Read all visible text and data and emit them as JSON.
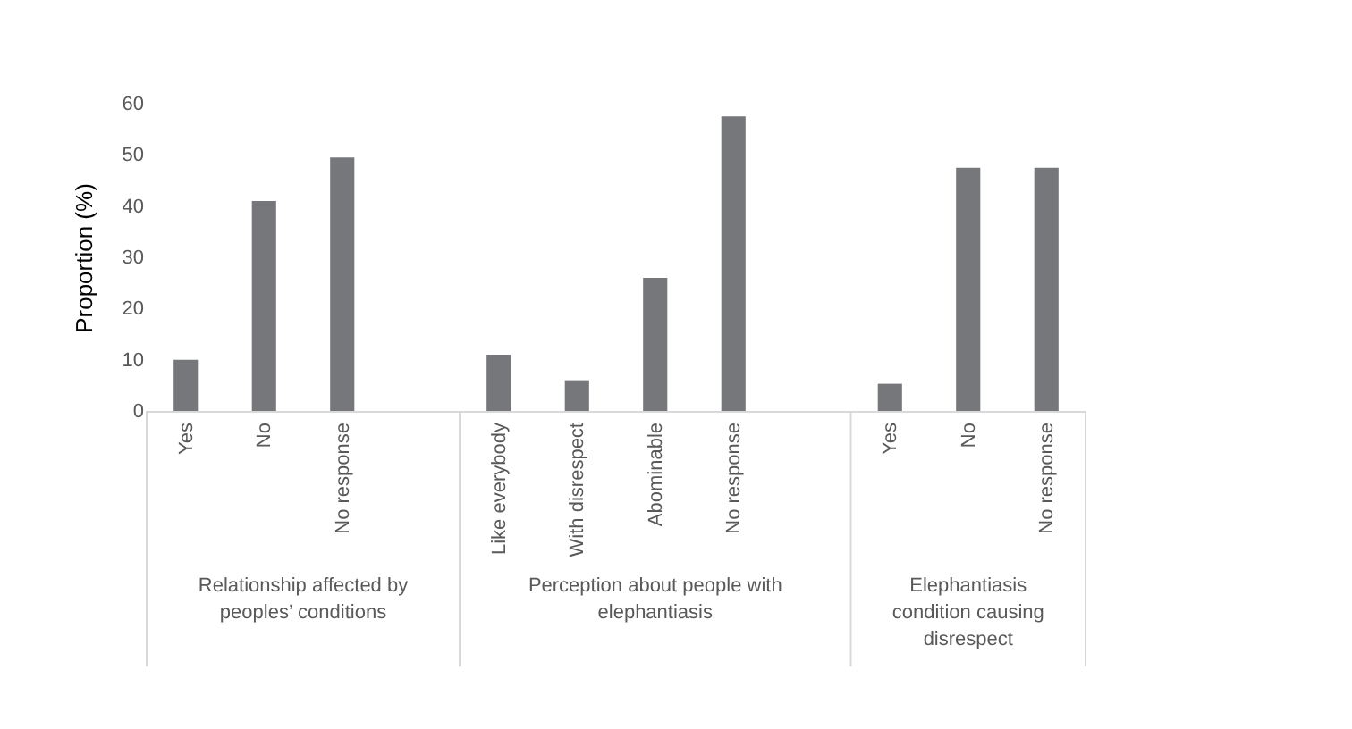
{
  "chart_data": {
    "type": "bar",
    "ylabel": "Proportion (%)",
    "categories": [
      "Yes",
      "No",
      "No response",
      null,
      "Like everybody",
      "With disrespect",
      "Abominable",
      "No response",
      null,
      "Yes",
      "No",
      "No response"
    ],
    "values": [
      10,
      41,
      49.5,
      null,
      11,
      6,
      26,
      57.5,
      null,
      5.3,
      47.5,
      47.5
    ],
    "color": "#76777a",
    "ylim": [
      0,
      60
    ],
    "yticks": [
      0,
      10,
      20,
      30,
      40,
      50,
      60
    ],
    "grid": false,
    "annotations": [
      "Relationship affected by peoples’ conditions",
      "Perception about people with elephantiasis",
      "Elephantiasis condition causing disrespect"
    ]
  }
}
